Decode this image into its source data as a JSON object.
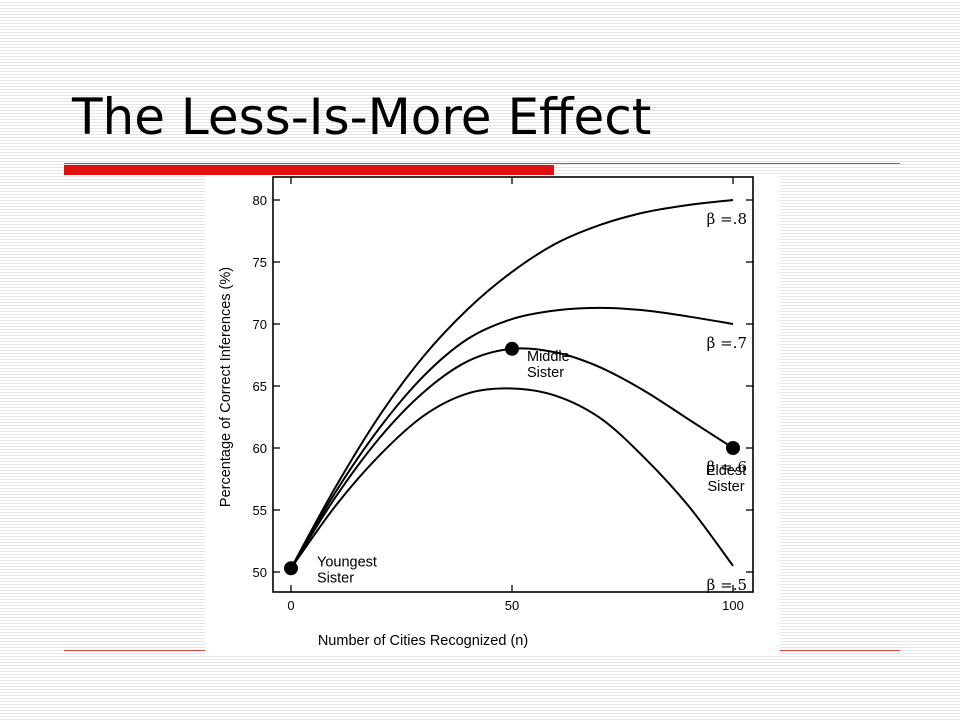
{
  "slide": {
    "title": "The Less-Is-More Effect",
    "accent_color": "#e01010"
  },
  "chart_data": {
    "type": "line",
    "title": "",
    "xlabel": "Number of Cities Recognized (n)",
    "ylabel": "Percentage of Correct Inferences (%)",
    "xlim": [
      0,
      100
    ],
    "ylim": [
      50,
      80
    ],
    "x_ticks": [
      0,
      50,
      100
    ],
    "y_ticks": [
      50,
      55,
      60,
      65,
      70,
      75,
      80
    ],
    "grid": false,
    "series": [
      {
        "name": "β =.8",
        "x": [
          0,
          10,
          20,
          30,
          40,
          50,
          60,
          70,
          80,
          90,
          100
        ],
        "y": [
          50.3,
          56.8,
          62.6,
          67.4,
          71.2,
          74.2,
          76.5,
          78.0,
          79.0,
          79.6,
          80.0
        ]
      },
      {
        "name": "β =.7",
        "x": [
          0,
          10,
          20,
          30,
          40,
          50,
          60,
          70,
          80,
          90,
          100
        ],
        "y": [
          50.3,
          56.4,
          61.6,
          65.8,
          68.8,
          70.4,
          71.1,
          71.3,
          71.1,
          70.6,
          70.0
        ]
      },
      {
        "name": "β =.6",
        "x": [
          0,
          10,
          20,
          30,
          40,
          50,
          60,
          70,
          80,
          90,
          100
        ],
        "y": [
          50.3,
          56.0,
          60.8,
          64.5,
          67.0,
          68.0,
          67.7,
          66.5,
          64.6,
          62.3,
          60.0
        ]
      },
      {
        "name": "β =.5",
        "x": [
          0,
          10,
          20,
          30,
          40,
          50,
          60,
          70,
          80,
          90,
          100
        ],
        "y": [
          50.3,
          55.3,
          59.4,
          62.6,
          64.4,
          64.8,
          64.2,
          62.4,
          59.2,
          55.3,
          50.5
        ]
      }
    ],
    "points": [
      {
        "label": "Youngest\nSister",
        "x": 0,
        "y": 50.3
      },
      {
        "label": "Middle\nSister",
        "x": 50,
        "y": 68.0
      },
      {
        "label": "Eldest\nSister",
        "x": 100,
        "y": 60.0
      }
    ]
  }
}
